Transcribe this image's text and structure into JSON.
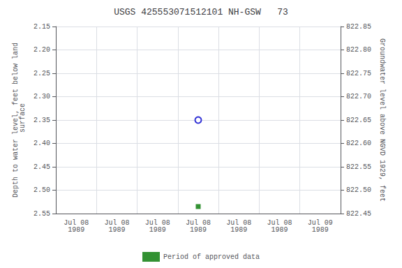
{
  "chart_data": {
    "type": "scatter",
    "title": "USGS 425553071512101 NH-GSW   73",
    "y_label": "Depth to water level, feet below land\n surface",
    "y2_label": "Groundwater level above NGVD 1929, feet",
    "categories": [
      "Jul 08\n1989",
      "Jul 08\n1989",
      "Jul 08\n1989",
      "Jul 08\n1989",
      "Jul 08\n1989",
      "Jul 08\n1989",
      "Jul 09\n1989"
    ],
    "series": [
      {
        "color": "#0000cc",
        "marker": "circle_open",
        "values": [
          null,
          null,
          null,
          2.35,
          null,
          null,
          null
        ]
      },
      {
        "name": "Period of approved data",
        "color": "#007700",
        "marker": "square",
        "values": [
          null,
          null,
          null,
          2.535,
          null,
          null,
          null
        ]
      }
    ],
    "ylim": [
      2.55,
      2.15
    ],
    "yticks": [
      2.15,
      {
        "value": 2.2,
        "label": "2.20"
      },
      2.25,
      {
        "value": 2.3,
        "label": "2.30"
      },
      2.35,
      {
        "value": 2.4,
        "label": "2.40"
      },
      2.45,
      {
        "value": 2.5,
        "label": "2.50"
      },
      2.55
    ],
    "y2lim": [
      822.45,
      822.85
    ],
    "y2ticks": [
      822.45,
      {
        "value": 822.5,
        "label": "822.50"
      },
      822.55,
      {
        "value": 822.6,
        "label": "822.60"
      },
      822.65,
      {
        "value": 822.7,
        "label": "822.70"
      },
      822.75,
      {
        "value": 822.8,
        "label": "822.80"
      },
      822.85
    ],
    "grid": true,
    "legend": "bottom"
  }
}
